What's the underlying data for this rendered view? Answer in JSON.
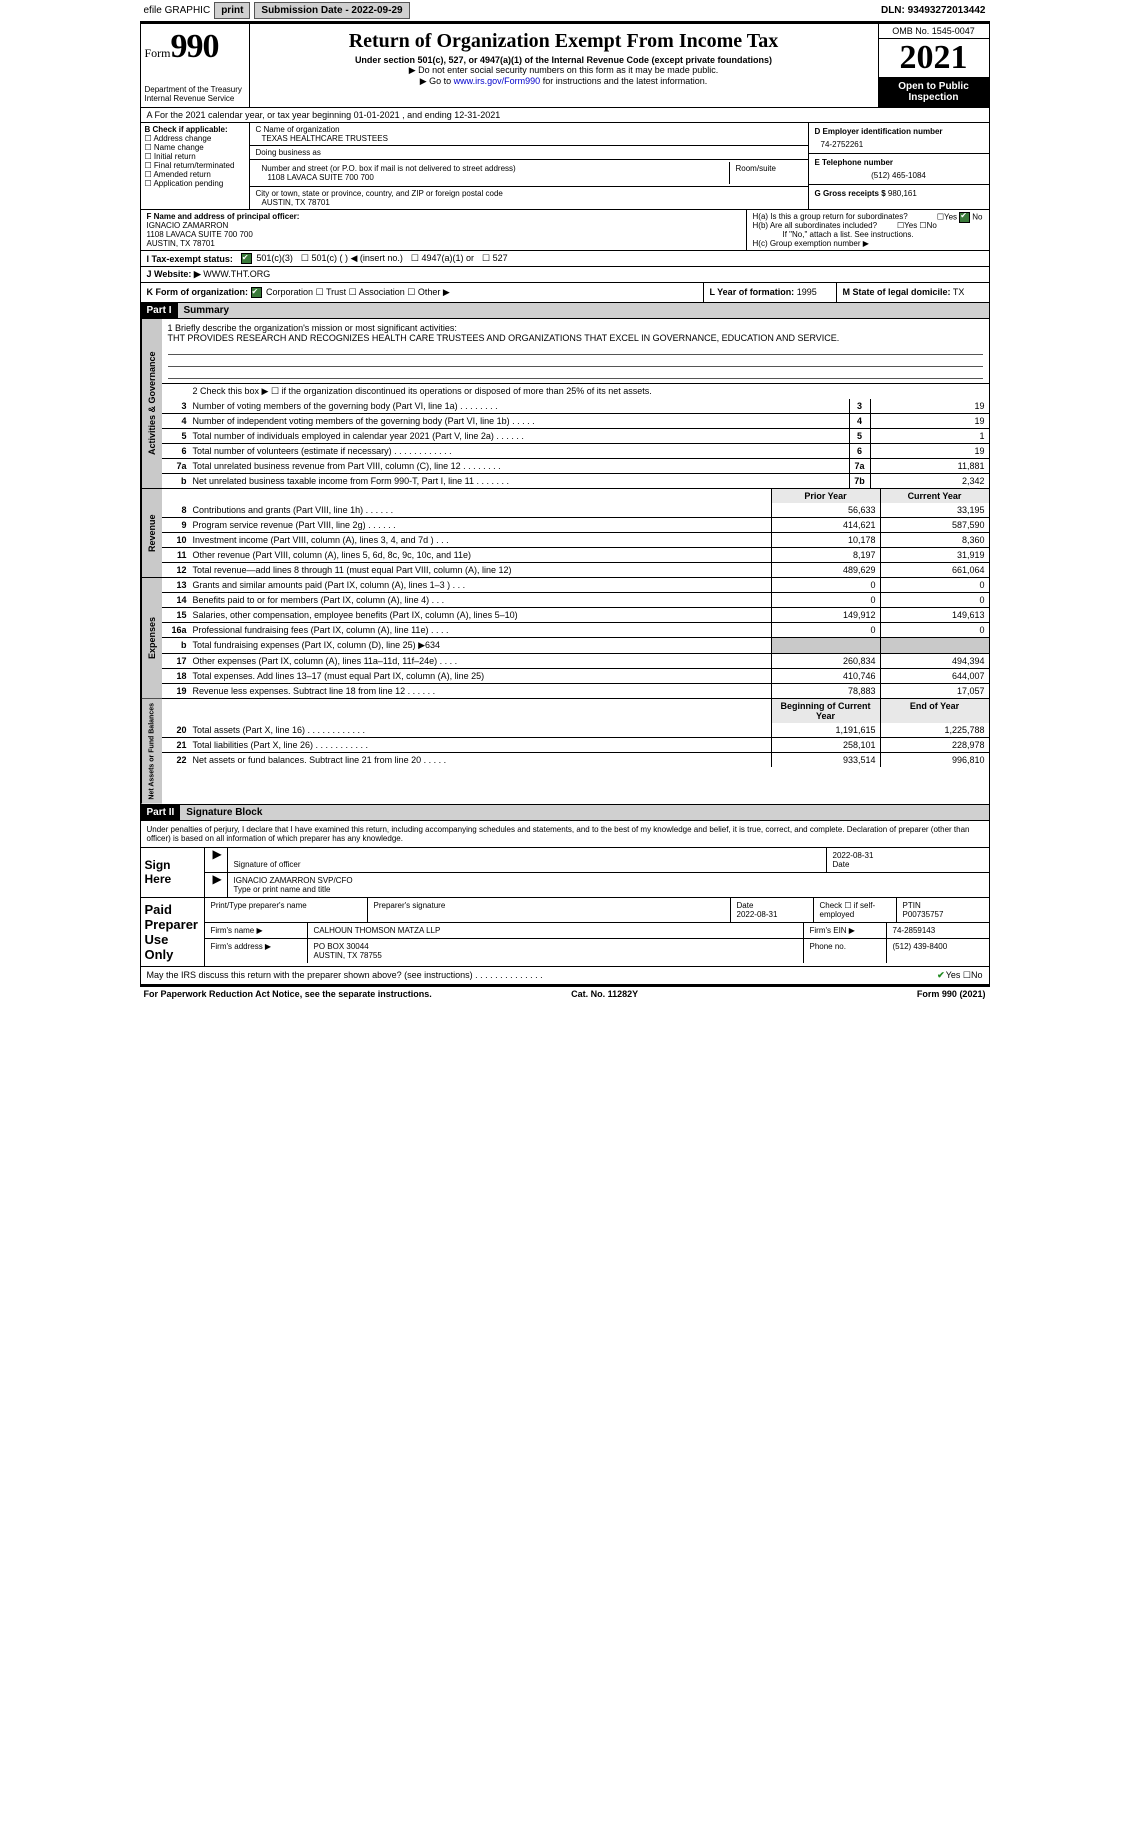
{
  "topbar": {
    "efile": "efile GRAPHIC",
    "print": "print",
    "subLabel": "Submission Date - 2022-09-29",
    "dln": "DLN: 93493272013442"
  },
  "header": {
    "formWord": "Form",
    "formNum": "990",
    "dept": "Department of the Treasury\nInternal Revenue Service",
    "title": "Return of Organization Exempt From Income Tax",
    "sub": "Under section 501(c), 527, or 4947(a)(1) of the Internal Revenue Code (except private foundations)",
    "inst1": "▶ Do not enter social security numbers on this form as it may be made public.",
    "inst2": "▶ Go to www.irs.gov/Form990 for instructions and the latest information.",
    "instLink": "www.irs.gov/Form990",
    "omb": "OMB No. 1545-0047",
    "year": "2021",
    "otp": "Open to Public Inspection"
  },
  "A": {
    "text": "A For the 2021 calendar year, or tax year beginning 01-01-2021   , and ending 12-31-2021"
  },
  "B": {
    "label": "B Check if applicable:",
    "items": [
      "Address change",
      "Name change",
      "Initial return",
      "Final return/terminated",
      "Amended return",
      "Application pending"
    ]
  },
  "C": {
    "nameLabel": "C Name of organization",
    "name": "TEXAS HEALTHCARE TRUSTEES",
    "dba": "Doing business as",
    "addrLabel": "Number and street (or P.O. box if mail is not delivered to street address)",
    "addr": "1108 LAVACA SUITE 700 700",
    "room": "Room/suite",
    "cityLabel": "City or town, state or province, country, and ZIP or foreign postal code",
    "city": "AUSTIN, TX  78701"
  },
  "D": {
    "label": "D Employer identification number",
    "val": "74-2752261"
  },
  "E": {
    "label": "E Telephone number",
    "val": "(512) 465-1084"
  },
  "G": {
    "label": "G Gross receipts $",
    "val": "980,161"
  },
  "F": {
    "label": "F Name and address of principal officer:",
    "name": "IGNACIO ZAMARRON",
    "addr": "1108 LAVACA SUITE 700 700",
    "city": "AUSTIN, TX  78701"
  },
  "H": {
    "a": "H(a)  Is this a group return for subordinates?",
    "b": "H(b)  Are all subordinates included?",
    "bnote": "If \"No,\" attach a list. See instructions.",
    "c": "H(c)  Group exemption number ▶"
  },
  "I": {
    "label": "I    Tax-exempt status:",
    "opts": [
      "501(c)(3)",
      "501(c) (  ) ◀ (insert no.)",
      "4947(a)(1) or",
      "527"
    ]
  },
  "J": {
    "label": "J    Website: ▶",
    "val": "WWW.THT.ORG"
  },
  "K": {
    "label": "K Form of organization:",
    "opts": [
      "Corporation",
      "Trust",
      "Association",
      "Other ▶"
    ]
  },
  "L": {
    "label": "L Year of formation:",
    "val": "1995"
  },
  "M": {
    "label": "M State of legal domicile:",
    "val": "TX"
  },
  "part1": {
    "head": "Part I",
    "title": "Summary"
  },
  "mission": {
    "label": "1  Briefly describe the organization's mission or most significant activities:",
    "text": "THT PROVIDES RESEARCH AND RECOGNIZES HEALTH CARE TRUSTEES AND ORGANIZATIONS THAT EXCEL IN GOVERNANCE, EDUCATION AND SERVICE."
  },
  "line2": "2    Check this box ▶ ☐  if the organization discontinued its operations or disposed of more than 25% of its net assets.",
  "gov": [
    {
      "n": "3",
      "t": "Number of voting members of the governing body (Part VI, line 1a)  .    .    .    .    .    .    .    .",
      "b": "3",
      "v": "19"
    },
    {
      "n": "4",
      "t": "Number of independent voting members of the governing body (Part VI, line 1b)  .    .    .    .    .",
      "b": "4",
      "v": "19"
    },
    {
      "n": "5",
      "t": "Total number of individuals employed in calendar year 2021 (Part V, line 2a)  .    .    .    .    .    .",
      "b": "5",
      "v": "1"
    },
    {
      "n": "6",
      "t": "Total number of volunteers (estimate if necessary)   .    .    .    .    .    .    .    .    .    .    .    .",
      "b": "6",
      "v": "19"
    },
    {
      "n": "7a",
      "t": "Total unrelated business revenue from Part VIII, column (C), line 12  .    .    .    .    .    .    .    .",
      "b": "7a",
      "v": "11,881"
    },
    {
      "n": "b",
      "t": "Net unrelated business taxable income from Form 990-T, Part I, line 11  .    .    .    .    .    .    .",
      "b": "7b",
      "v": "2,342"
    }
  ],
  "colhead": {
    "prior": "Prior Year",
    "curr": "Current Year"
  },
  "rev": [
    {
      "n": "8",
      "t": "Contributions and grants (Part VIII, line 1h)   .    .    .    .    .    .",
      "p": "56,633",
      "c": "33,195"
    },
    {
      "n": "9",
      "t": "Program service revenue (Part VIII, line 2g)   .    .    .    .    .    .",
      "p": "414,621",
      "c": "587,590"
    },
    {
      "n": "10",
      "t": "Investment income (Part VIII, column (A), lines 3, 4, and 7d )   .    .    .",
      "p": "10,178",
      "c": "8,360"
    },
    {
      "n": "11",
      "t": "Other revenue (Part VIII, column (A), lines 5, 6d, 8c, 9c, 10c, and 11e)",
      "p": "8,197",
      "c": "31,919"
    },
    {
      "n": "12",
      "t": "Total revenue—add lines 8 through 11 (must equal Part VIII, column (A), line 12)",
      "p": "489,629",
      "c": "661,064"
    }
  ],
  "exp": [
    {
      "n": "13",
      "t": "Grants and similar amounts paid (Part IX, column (A), lines 1–3 )  .    .    .",
      "p": "0",
      "c": "0"
    },
    {
      "n": "14",
      "t": "Benefits paid to or for members (Part IX, column (A), line 4)   .    .    .",
      "p": "0",
      "c": "0"
    },
    {
      "n": "15",
      "t": "Salaries, other compensation, employee benefits (Part IX, column (A), lines 5–10)",
      "p": "149,912",
      "c": "149,613"
    },
    {
      "n": "16a",
      "t": "Professional fundraising fees (Part IX, column (A), line 11e)  .    .    .    .",
      "p": "0",
      "c": "0"
    },
    {
      "n": "b",
      "t": "Total fundraising expenses (Part IX, column (D), line 25) ▶634",
      "p": "",
      "c": "",
      "shade": true
    },
    {
      "n": "17",
      "t": "Other expenses (Part IX, column (A), lines 11a–11d, 11f–24e)  .    .    .    .",
      "p": "260,834",
      "c": "494,394"
    },
    {
      "n": "18",
      "t": "Total expenses. Add lines 13–17 (must equal Part IX, column (A), line 25)",
      "p": "410,746",
      "c": "644,007"
    },
    {
      "n": "19",
      "t": "Revenue less expenses. Subtract line 18 from line 12  .    .    .    .    .    .",
      "p": "78,883",
      "c": "17,057"
    }
  ],
  "nethead": {
    "beg": "Beginning of Current Year",
    "end": "End of Year"
  },
  "net": [
    {
      "n": "20",
      "t": "Total assets (Part X, line 16)  .    .    .    .    .    .    .    .    .    .    .    .",
      "p": "1,191,615",
      "c": "1,225,788"
    },
    {
      "n": "21",
      "t": "Total liabilities (Part X, line 26)  .    .    .    .    .    .    .    .    .    .    .",
      "p": "258,101",
      "c": "228,978"
    },
    {
      "n": "22",
      "t": "Net assets or fund balances. Subtract line 21 from line 20  .    .    .    .    .",
      "p": "933,514",
      "c": "996,810"
    }
  ],
  "part2": {
    "head": "Part II",
    "title": "Signature Block"
  },
  "sigIntro": "Under penalties of perjury, I declare that I have examined this return, including accompanying schedules and statements, and to the best of my knowledge and belief, it is true, correct, and complete. Declaration of preparer (other than officer) is based on all information of which preparer has any knowledge.",
  "sign": {
    "sig": "Signature of officer",
    "date": "2022-08-31",
    "name": "IGNACIO ZAMARRON SVP/CFO",
    "typ": "Type or print name and title"
  },
  "paid": {
    "head": "Paid Preparer Use Only",
    "r1": {
      "a": "Print/Type preparer's name",
      "b": "Preparer's signature",
      "c": "Date\n2022-08-31",
      "d": "Check ☐ if self-employed",
      "e": "PTIN\nP00735757"
    },
    "r2": {
      "a": "Firm's name    ▶",
      "b": "CALHOUN THOMSON MATZA LLP",
      "c": "Firm's EIN ▶",
      "d": "74-2859143"
    },
    "r3": {
      "a": "Firm's address ▶",
      "b": "PO BOX 30044",
      "c": "Phone no.",
      "d": "(512) 439-8400"
    },
    "r3b": "AUSTIN, TX  78755"
  },
  "may": {
    "q": "May the IRS discuss this return with the preparer shown above? (see instructions)  .    .    .    .    .    .    .    .    .    .    .    .    .    .",
    "yes": "Yes",
    "no": "No"
  },
  "footer": {
    "l": "For Paperwork Reduction Act Notice, see the separate instructions.",
    "c": "Cat. No. 11282Y",
    "r": "Form 990 (2021)"
  },
  "tabs": {
    "ag": "Activities & Governance",
    "rev": "Revenue",
    "exp": "Expenses",
    "net": "Net Assets or Fund Balances",
    "sign": "Sign Here"
  }
}
